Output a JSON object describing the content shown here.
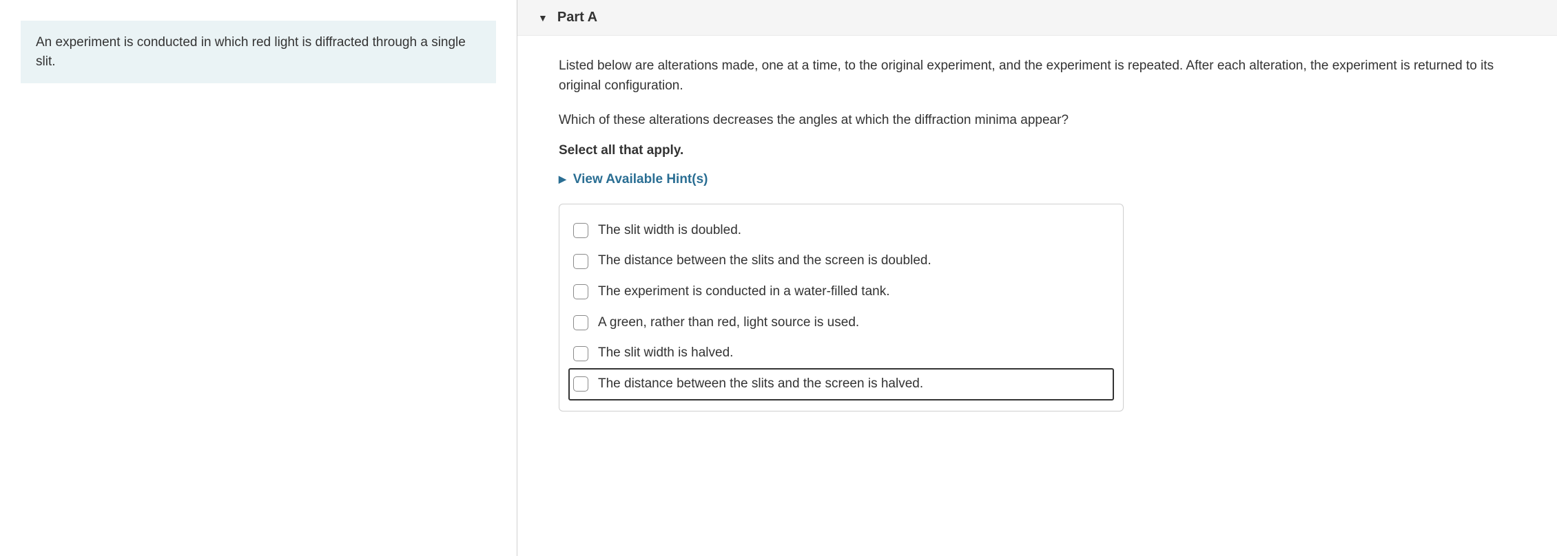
{
  "left": {
    "intro": "An experiment is conducted in which red light is diffracted through a single slit."
  },
  "part": {
    "title": "Part A",
    "prompt": "Listed below are alterations made, one at a time, to the original experiment, and the experiment is repeated. After each alteration, the experiment is returned to its original configuration.",
    "question": "Which of these alterations decreases the angles at which the diffraction minima appear?",
    "instruction": "Select all that apply.",
    "hints_label": "View Available Hint(s)",
    "options": [
      "The slit width is doubled.",
      "The distance between the slits and the screen is doubled.",
      "The experiment is conducted in a water-filled tank.",
      "A green, rather than red, light source is used.",
      "The slit width is halved.",
      "The distance between the slits and the screen is halved."
    ],
    "focused_index": 5
  },
  "colors": {
    "intro_bg": "#eaf3f5",
    "header_bg": "#f5f5f5",
    "link": "#2a6e93",
    "border": "#cfcfcf"
  }
}
